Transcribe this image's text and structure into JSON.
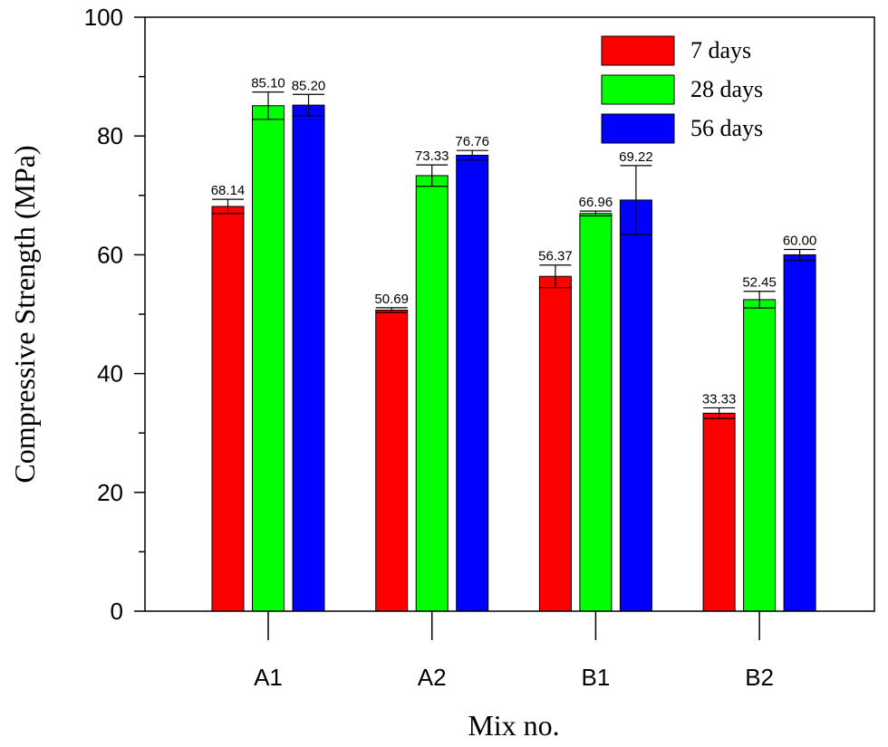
{
  "chart_data": {
    "type": "bar",
    "title": "",
    "xlabel": "Mix no.",
    "ylabel": "Compressive Strength (MPa)",
    "ylim": [
      0,
      100
    ],
    "yticks": [
      0,
      20,
      40,
      60,
      80,
      100
    ],
    "categories": [
      "A1",
      "A2",
      "B1",
      "B2"
    ],
    "legend_position": "top-right",
    "series": [
      {
        "name": "7 days",
        "color": "#ff0000",
        "values": [
          68.14,
          50.69,
          56.37,
          33.33
        ],
        "errors": [
          1.2,
          0.4,
          1.9,
          0.9
        ],
        "labels": [
          "68.14",
          "50.69",
          "56.37",
          "33.33"
        ]
      },
      {
        "name": "28 days",
        "color": "#00ff00",
        "values": [
          85.1,
          73.33,
          66.96,
          52.45
        ],
        "errors": [
          2.3,
          1.8,
          0.4,
          1.4
        ],
        "labels": [
          "85.10",
          "73.33",
          "66.96",
          "52.45"
        ]
      },
      {
        "name": "56 days",
        "color": "#0000ff",
        "values": [
          85.2,
          76.76,
          69.22,
          60.0
        ],
        "errors": [
          1.8,
          0.8,
          5.8,
          0.9
        ],
        "labels": [
          "85.20",
          "76.76",
          "69.22",
          "60.00"
        ]
      }
    ]
  }
}
